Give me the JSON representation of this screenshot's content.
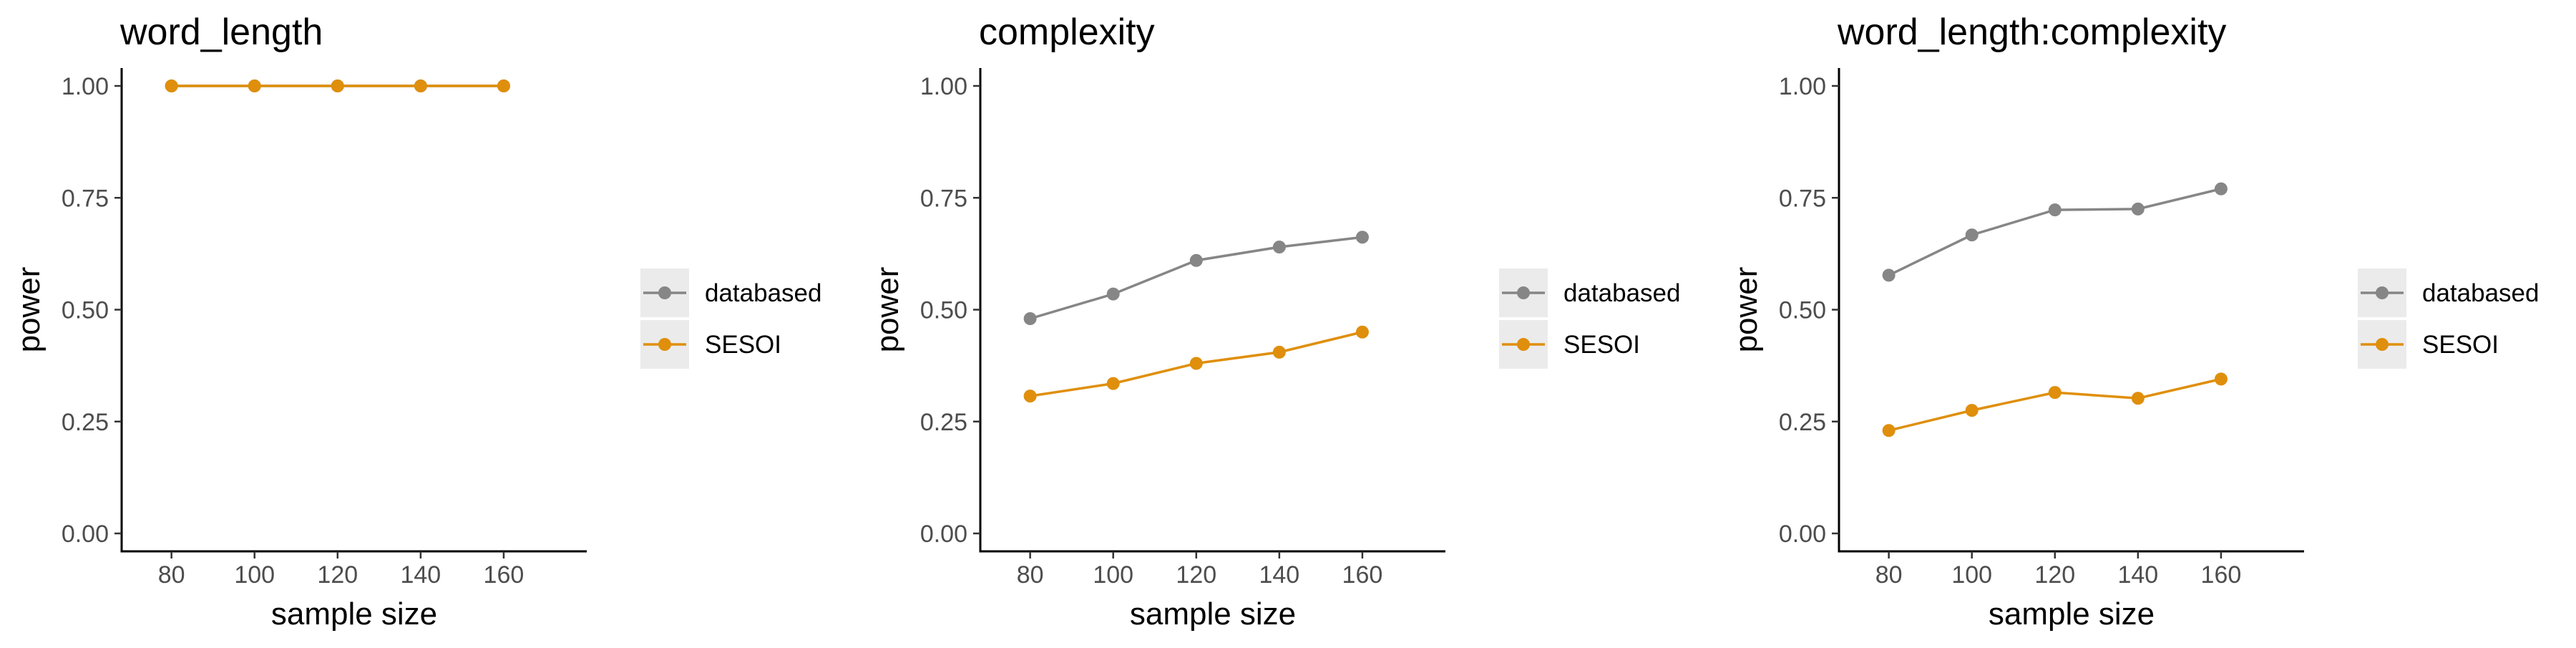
{
  "chart_data": [
    {
      "type": "line",
      "title": "word_length",
      "xlabel": "sample size",
      "ylabel": "power",
      "x": [
        80,
        100,
        120,
        140,
        160
      ],
      "xticks": [
        "80",
        "100",
        "120",
        "140",
        "160"
      ],
      "xlim": [
        68,
        180
      ],
      "yticks": [
        "0.00",
        "0.25",
        "0.50",
        "0.75",
        "1.00"
      ],
      "ylim": [
        -0.04,
        1.04
      ],
      "grid": false,
      "legend_placement": "right",
      "series": [
        {
          "name": "databased",
          "color": "#868686",
          "values": [
            1.0,
            1.0,
            1.0,
            1.0,
            1.0
          ]
        },
        {
          "name": "SESOI",
          "color": "#DF8F0B",
          "values": [
            1.0,
            1.0,
            1.0,
            1.0,
            1.0
          ]
        }
      ]
    },
    {
      "type": "line",
      "title": "complexity",
      "xlabel": "sample size",
      "ylabel": "power",
      "x": [
        80,
        100,
        120,
        140,
        160
      ],
      "xticks": [
        "80",
        "100",
        "120",
        "140",
        "160"
      ],
      "xlim": [
        68,
        180
      ],
      "yticks": [
        "0.00",
        "0.25",
        "0.50",
        "0.75",
        "1.00"
      ],
      "ylim": [
        -0.04,
        1.04
      ],
      "grid": false,
      "legend_placement": "right",
      "series": [
        {
          "name": "databased",
          "color": "#868686",
          "values": [
            0.48,
            0.535,
            0.61,
            0.64,
            0.662
          ]
        },
        {
          "name": "SESOI",
          "color": "#DF8F0B",
          "values": [
            0.307,
            0.335,
            0.38,
            0.405,
            0.45
          ]
        }
      ]
    },
    {
      "type": "line",
      "title": "word_length:complexity",
      "xlabel": "sample size",
      "ylabel": "power",
      "x": [
        80,
        100,
        120,
        140,
        160
      ],
      "xticks": [
        "80",
        "100",
        "120",
        "140",
        "160"
      ],
      "xlim": [
        68,
        180
      ],
      "yticks": [
        "0.00",
        "0.25",
        "0.50",
        "0.75",
        "1.00"
      ],
      "ylim": [
        -0.04,
        1.04
      ],
      "grid": false,
      "legend_placement": "right",
      "series": [
        {
          "name": "databased",
          "color": "#868686",
          "values": [
            0.577,
            0.667,
            0.723,
            0.725,
            0.77
          ]
        },
        {
          "name": "SESOI",
          "color": "#DF8F0B",
          "values": [
            0.23,
            0.275,
            0.315,
            0.302,
            0.345
          ]
        }
      ]
    }
  ]
}
